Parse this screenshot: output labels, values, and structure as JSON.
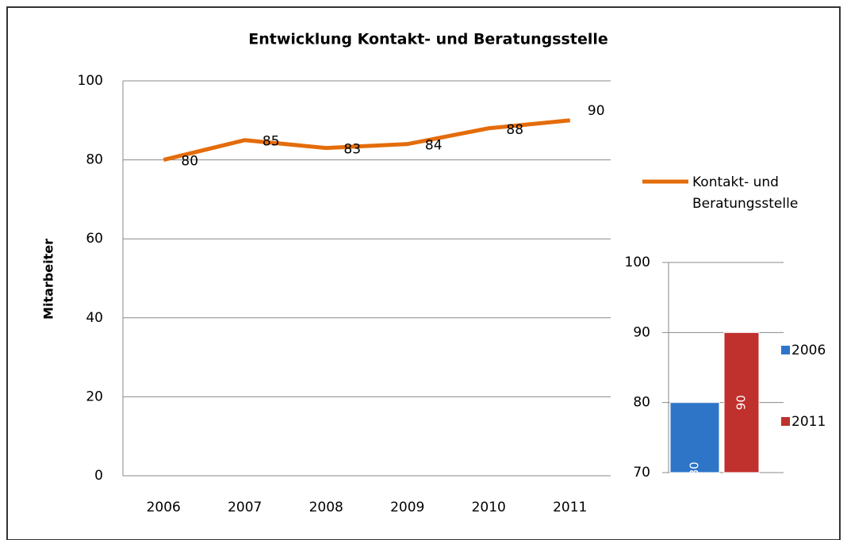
{
  "chart_data": [
    {
      "type": "line",
      "title": "Entwicklung Kontakt- und Beratungsstelle",
      "y_label": "Mitarbeiter",
      "categories": [
        "2006",
        "2007",
        "2008",
        "2009",
        "2010",
        "2011"
      ],
      "series": [
        {
          "name": "Kontakt- und Beratungsstelle",
          "color": "#e46c0a",
          "values": [
            80,
            85,
            83,
            84,
            88,
            90
          ]
        }
      ],
      "ylim": [
        0,
        100
      ],
      "yticks": [
        0,
        20,
        40,
        60,
        80,
        100
      ],
      "grid": true,
      "legend": "right"
    },
    {
      "type": "bar",
      "series": [
        {
          "name": "2006",
          "color": "#2e75c8",
          "values": [
            80
          ]
        },
        {
          "name": "2011",
          "color": "#c0302c",
          "values": [
            90
          ]
        }
      ],
      "ylim": [
        70,
        100
      ],
      "yticks": [
        70,
        80,
        90,
        100
      ],
      "grid": true,
      "legend": "right"
    }
  ]
}
